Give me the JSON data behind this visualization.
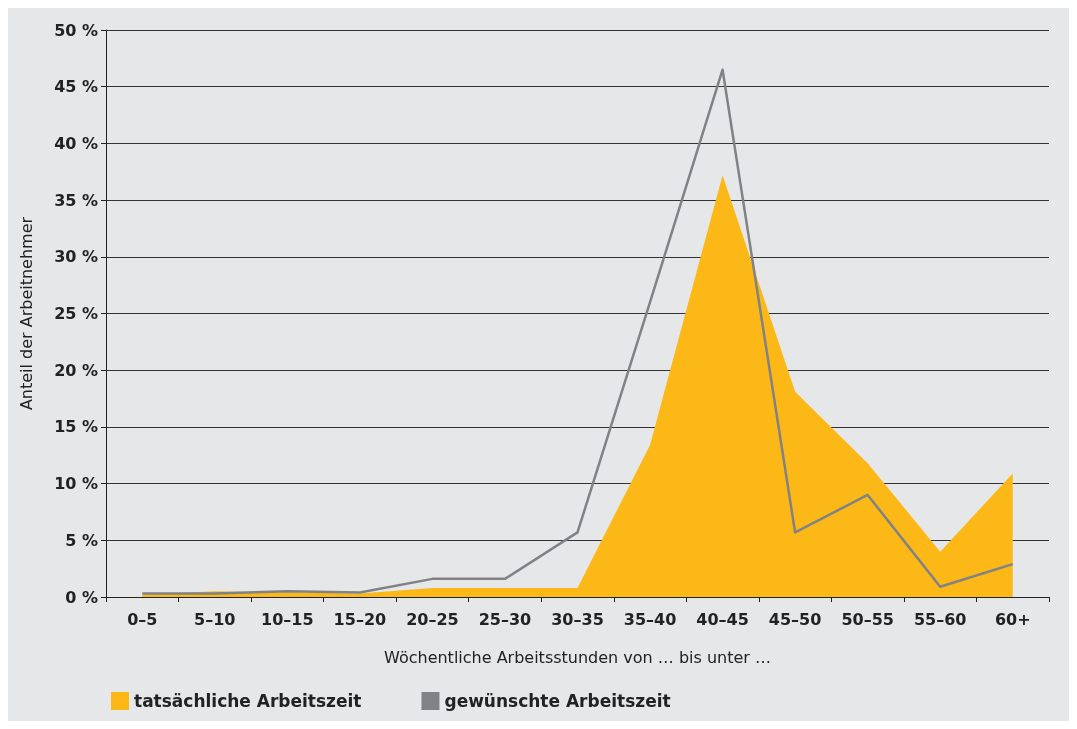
{
  "chart_data": {
    "type": "area",
    "xlabel": "Wöchentliche Arbeitsstunden von … bis unter …",
    "ylabel": "Anteil der Arbeitnehmer",
    "categories": [
      "0–5",
      "5–10",
      "10–15",
      "15–20",
      "20–25",
      "25–30",
      "30–35",
      "35–40",
      "40–45",
      "45–50",
      "50–55",
      "55–60",
      "60+"
    ],
    "series": [
      {
        "name": "tatsächliche Arbeitszeit",
        "color": "#fbb817",
        "values": [
          0.2,
          0.5,
          0.4,
          0.3,
          0.8,
          0.8,
          0.8,
          13.4,
          37.2,
          18.1,
          11.8,
          4.0,
          10.9
        ]
      },
      {
        "name": "gewünschte Arbeitszeit",
        "type": "line",
        "color": "#818285",
        "values": [
          0.3,
          0.3,
          0.5,
          0.4,
          1.6,
          1.6,
          5.7,
          26,
          46.5,
          5.7,
          9.0,
          0.9,
          2.9
        ]
      }
    ],
    "ylim": [
      0,
      50
    ],
    "yticks": [
      {
        "value": 0,
        "label": "0 %"
      },
      {
        "value": 5,
        "label": "5 %"
      },
      {
        "value": 10,
        "label": "10 %"
      },
      {
        "value": 15,
        "label": "15 %"
      },
      {
        "value": 20,
        "label": "20 %"
      },
      {
        "value": 25,
        "label": "25 %"
      },
      {
        "value": 30,
        "label": "30 %"
      },
      {
        "value": 35,
        "label": "35 %"
      },
      {
        "value": 40,
        "label": "40 %"
      },
      {
        "value": 45,
        "label": "45 %"
      },
      {
        "value": 50,
        "label": "50 %"
      }
    ],
    "grid": "y",
    "legend": "bottom left",
    "marker": "none"
  }
}
